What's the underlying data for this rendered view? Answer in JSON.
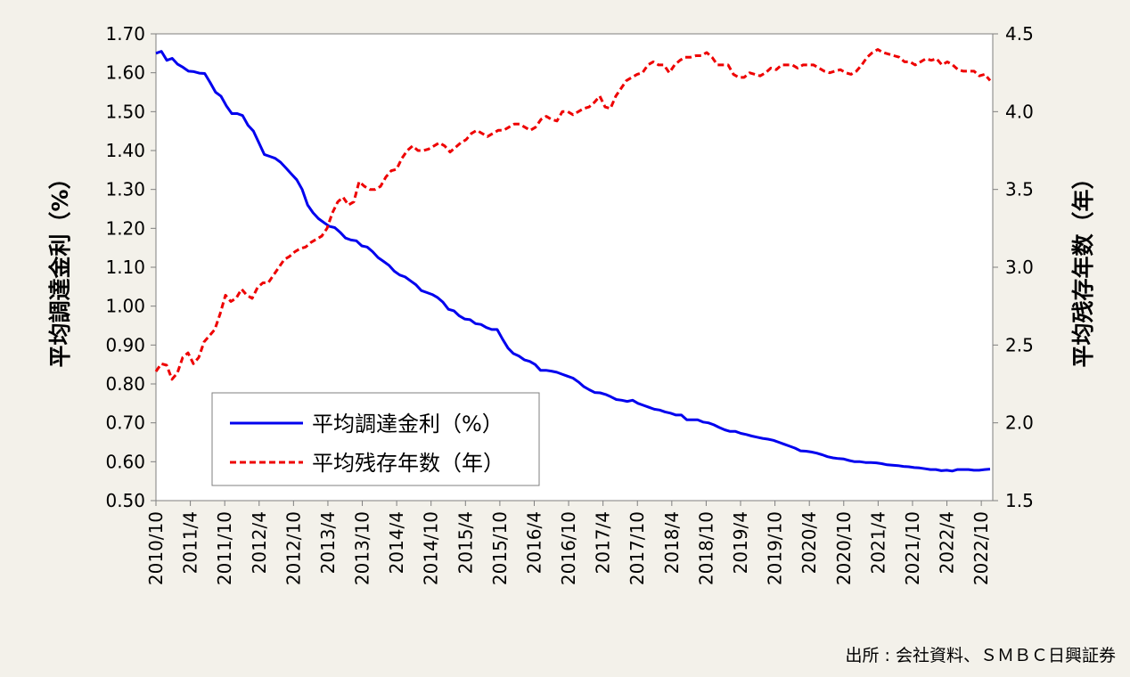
{
  "chart_data": {
    "type": "line",
    "ylabel_left": "平均調達金利（%）",
    "ylabel_right": "平均残存年数（年）",
    "source": "出所 : 会社資料、ＳＭＢＣ日興証券",
    "y_left": {
      "range": [
        0.5,
        1.7
      ],
      "ticks": [
        "0.50",
        "0.60",
        "0.70",
        "0.80",
        "0.90",
        "1.00",
        "1.10",
        "1.20",
        "1.30",
        "1.40",
        "1.50",
        "1.60",
        "1.70"
      ]
    },
    "y_right": {
      "range": [
        1.5,
        4.5
      ],
      "ticks": [
        "1.5",
        "2.0",
        "2.5",
        "3.0",
        "3.5",
        "4.0",
        "4.5"
      ]
    },
    "x_ticks": [
      "2010/10",
      "2011/4",
      "2011/10",
      "2012/4",
      "2012/10",
      "2013/4",
      "2013/10",
      "2014/4",
      "2014/10",
      "2015/4",
      "2015/10",
      "2016/4",
      "2016/10",
      "2017/4",
      "2017/10",
      "2018/4",
      "2018/10",
      "2019/4",
      "2019/10",
      "2020/4",
      "2020/10",
      "2021/4",
      "2021/10",
      "2022/4",
      "2022/10"
    ],
    "series": [
      {
        "name": "平均調達金利（%）",
        "axis": "left",
        "color": "#0000ee",
        "style": "solid",
        "values": [
          1.65,
          1.655,
          1.632,
          1.637,
          1.622,
          1.614,
          1.604,
          1.603,
          1.599,
          1.598,
          1.575,
          1.55,
          1.54,
          1.515,
          1.495,
          1.495,
          1.49,
          1.465,
          1.45,
          1.42,
          1.39,
          1.385,
          1.38,
          1.37,
          1.355,
          1.34,
          1.325,
          1.3,
          1.26,
          1.24,
          1.225,
          1.215,
          1.205,
          1.202,
          1.19,
          1.175,
          1.17,
          1.168,
          1.155,
          1.152,
          1.14,
          1.125,
          1.115,
          1.105,
          1.09,
          1.08,
          1.075,
          1.065,
          1.055,
          1.04,
          1.035,
          1.03,
          1.022,
          1.01,
          0.992,
          0.988,
          0.975,
          0.967,
          0.965,
          0.955,
          0.953,
          0.945,
          0.94,
          0.94,
          0.915,
          0.892,
          0.878,
          0.872,
          0.862,
          0.858,
          0.85,
          0.835,
          0.835,
          0.833,
          0.83,
          0.825,
          0.82,
          0.815,
          0.805,
          0.793,
          0.785,
          0.778,
          0.777,
          0.773,
          0.767,
          0.76,
          0.758,
          0.755,
          0.758,
          0.75,
          0.745,
          0.74,
          0.735,
          0.733,
          0.728,
          0.725,
          0.72,
          0.72,
          0.708,
          0.708,
          0.708,
          0.702,
          0.7,
          0.695,
          0.688,
          0.682,
          0.678,
          0.678,
          0.673,
          0.67,
          0.666,
          0.663,
          0.66,
          0.658,
          0.655,
          0.65,
          0.645,
          0.64,
          0.635,
          0.628,
          0.627,
          0.625,
          0.622,
          0.618,
          0.613,
          0.61,
          0.608,
          0.607,
          0.603,
          0.6,
          0.6,
          0.598,
          0.598,
          0.597,
          0.595,
          0.592,
          0.591,
          0.59,
          0.588,
          0.587,
          0.585,
          0.584,
          0.582,
          0.58,
          0.58,
          0.577,
          0.578,
          0.576,
          0.58,
          0.58,
          0.58,
          0.578,
          0.578,
          0.58,
          0.581
        ]
      },
      {
        "name": "平均残存年数（年）",
        "axis": "right",
        "color": "#ee0000",
        "style": "dashed",
        "values": [
          2.33,
          2.38,
          2.37,
          2.28,
          2.32,
          2.42,
          2.45,
          2.38,
          2.42,
          2.52,
          2.56,
          2.6,
          2.7,
          2.82,
          2.78,
          2.8,
          2.86,
          2.82,
          2.8,
          2.87,
          2.9,
          2.9,
          2.95,
          3.0,
          3.05,
          3.07,
          3.1,
          3.12,
          3.13,
          3.16,
          3.18,
          3.2,
          3.25,
          3.35,
          3.42,
          3.45,
          3.4,
          3.42,
          3.55,
          3.52,
          3.5,
          3.5,
          3.52,
          3.58,
          3.62,
          3.63,
          3.7,
          3.75,
          3.78,
          3.75,
          3.75,
          3.76,
          3.78,
          3.8,
          3.78,
          3.74,
          3.77,
          3.8,
          3.82,
          3.86,
          3.88,
          3.86,
          3.84,
          3.86,
          3.88,
          3.88,
          3.9,
          3.92,
          3.92,
          3.9,
          3.88,
          3.9,
          3.95,
          3.97,
          3.95,
          3.94,
          4.0,
          4.0,
          3.98,
          4.0,
          4.02,
          4.03,
          4.06,
          4.1,
          4.03,
          4.02,
          4.1,
          4.15,
          4.2,
          4.22,
          4.24,
          4.25,
          4.3,
          4.32,
          4.3,
          4.3,
          4.25,
          4.3,
          4.33,
          4.35,
          4.35,
          4.36,
          4.36,
          4.38,
          4.35,
          4.3,
          4.3,
          4.3,
          4.24,
          4.22,
          4.22,
          4.25,
          4.24,
          4.23,
          4.25,
          4.28,
          4.27,
          4.3,
          4.3,
          4.3,
          4.28,
          4.3,
          4.3,
          4.3,
          4.28,
          4.26,
          4.25,
          4.26,
          4.27,
          4.25,
          4.24,
          4.26,
          4.3,
          4.35,
          4.38,
          4.4,
          4.38,
          4.37,
          4.36,
          4.35,
          4.32,
          4.32,
          4.3,
          4.32,
          4.34,
          4.33,
          4.34,
          4.3,
          4.32,
          4.3,
          4.27,
          4.26,
          4.26,
          4.26,
          4.23,
          4.24,
          4.2
        ]
      }
    ],
    "legend_placement": "lower-left inside plot",
    "grid": false
  }
}
